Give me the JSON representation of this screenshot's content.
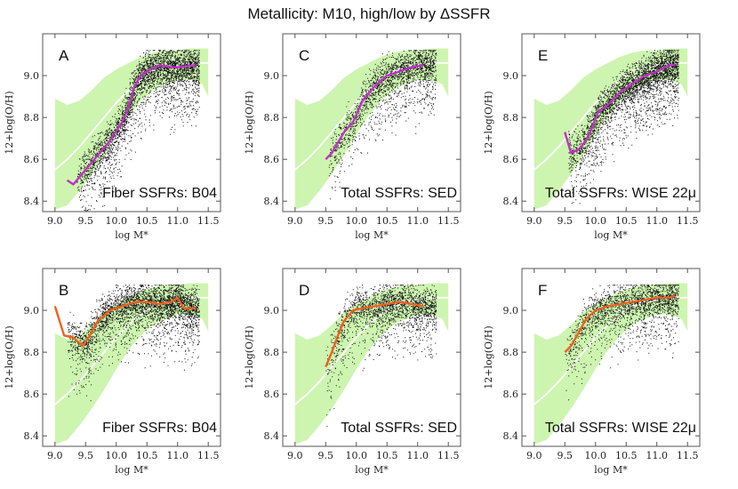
{
  "title": "Metallicity: M10,   high/low by ΔSSFR",
  "colors": {
    "band": "#cdf5b0",
    "median": "#ffffff",
    "magenta": "#c030c8",
    "orange": "#f06020",
    "points": "#111111",
    "frame": "#555555"
  },
  "chart_data": [
    {
      "type": "scatter",
      "id": "A",
      "letter": "A",
      "caption": "Fiber SSFRs: B04",
      "xlabel": "log M*",
      "ylabel": "12+log(O/H)",
      "xlim": [
        8.8,
        11.7
      ],
      "ylim": [
        8.35,
        9.2
      ],
      "xticks": [
        "9.0",
        "9.5",
        "10.0",
        "10.5",
        "11.0",
        "11.5"
      ],
      "yticks": [
        "8.4",
        "8.6",
        "8.8",
        "9.0"
      ],
      "line_color": "magenta",
      "trend": {
        "x": [
          9.2,
          9.3,
          9.5,
          9.7,
          9.9,
          10.1,
          10.2,
          10.3,
          10.4,
          10.5,
          10.7,
          10.9,
          11.0,
          11.3
        ],
        "y": [
          8.5,
          8.48,
          8.55,
          8.62,
          8.69,
          8.78,
          8.85,
          8.95,
          9.0,
          9.02,
          9.05,
          9.04,
          9.04,
          9.05
        ]
      },
      "cloud": {
        "x0": 9.35,
        "x1": 11.35,
        "density": "dense"
      }
    },
    {
      "type": "scatter",
      "id": "C",
      "letter": "C",
      "caption": "Total SSFRs: SED",
      "xlabel": "log M*",
      "ylabel": "12+log(O/H)",
      "xlim": [
        8.8,
        11.7
      ],
      "ylim": [
        8.35,
        9.2
      ],
      "xticks": [
        "9.0",
        "9.5",
        "10.0",
        "10.5",
        "11.0",
        "11.5"
      ],
      "yticks": [
        "8.4",
        "8.6",
        "8.8",
        "9.0"
      ],
      "line_color": "magenta",
      "trend": {
        "x": [
          9.5,
          9.6,
          9.8,
          9.95,
          10.1,
          10.3,
          10.5,
          10.7,
          10.9,
          11.1
        ],
        "y": [
          8.6,
          8.63,
          8.73,
          8.78,
          8.88,
          8.95,
          9.0,
          9.02,
          9.04,
          9.05
        ]
      },
      "cloud": {
        "x0": 9.55,
        "x1": 11.3,
        "density": "medium"
      }
    },
    {
      "type": "scatter",
      "id": "E",
      "letter": "E",
      "caption": "Total SSFRs: WISE 22μ",
      "xlabel": "log M*",
      "ylabel": "12+log(O/H)",
      "xlim": [
        8.8,
        11.7
      ],
      "ylim": [
        8.35,
        9.2
      ],
      "xticks": [
        "9.0",
        "9.5",
        "10.0",
        "10.5",
        "11.0",
        "11.5"
      ],
      "yticks": [
        "8.4",
        "8.6",
        "8.8",
        "9.0"
      ],
      "line_color": "magenta",
      "trend": {
        "x": [
          9.5,
          9.6,
          9.75,
          9.9,
          10.05,
          10.2,
          10.4,
          10.6,
          10.8,
          11.0,
          11.2,
          11.3
        ],
        "y": [
          8.73,
          8.63,
          8.65,
          8.72,
          8.83,
          8.86,
          8.92,
          8.96,
          9.0,
          9.02,
          9.05,
          9.05
        ]
      },
      "cloud": {
        "x0": 9.55,
        "x1": 11.35,
        "density": "dense"
      }
    },
    {
      "type": "scatter",
      "id": "B",
      "letter": "B",
      "caption": "Fiber SSFRs: B04",
      "xlabel": "log M*",
      "ylabel": "12+log(O/H)",
      "xlim": [
        8.8,
        11.7
      ],
      "ylim": [
        8.35,
        9.2
      ],
      "xticks": [
        "9.0",
        "9.5",
        "10.0",
        "10.5",
        "11.0",
        "11.5"
      ],
      "yticks": [
        "8.4",
        "8.6",
        "8.8",
        "9.0"
      ],
      "line_color": "orange",
      "trend": {
        "x": [
          9.0,
          9.15,
          9.3,
          9.45,
          9.55,
          9.7,
          9.9,
          10.1,
          10.3,
          10.5,
          10.7,
          10.9,
          11.0,
          11.1,
          11.3
        ],
        "y": [
          9.02,
          8.88,
          8.87,
          8.83,
          8.87,
          8.95,
          9.0,
          9.02,
          9.04,
          9.04,
          9.03,
          9.04,
          9.06,
          9.01,
          9.01
        ]
      },
      "cloud": {
        "x0": 9.2,
        "x1": 11.35,
        "density": "dense"
      }
    },
    {
      "type": "scatter",
      "id": "D",
      "letter": "D",
      "caption": "Total SSFRs: SED",
      "xlabel": "log M*",
      "ylabel": "12+log(O/H)",
      "xlim": [
        8.8,
        11.7
      ],
      "ylim": [
        8.35,
        9.2
      ],
      "xticks": [
        "9.0",
        "9.5",
        "10.0",
        "10.5",
        "11.0",
        "11.5"
      ],
      "yticks": [
        "8.4",
        "8.6",
        "8.8",
        "9.0"
      ],
      "line_color": "orange",
      "trend": {
        "x": [
          9.5,
          9.6,
          9.7,
          9.8,
          9.95,
          10.1,
          10.3,
          10.5,
          10.7,
          10.9,
          11.1
        ],
        "y": [
          8.73,
          8.8,
          8.88,
          8.95,
          9.0,
          9.01,
          9.02,
          9.03,
          9.04,
          9.03,
          9.02
        ]
      },
      "cloud": {
        "x0": 9.5,
        "x1": 11.3,
        "density": "medium"
      }
    },
    {
      "type": "scatter",
      "id": "F",
      "letter": "F",
      "caption": "Total SSFRs: WISE 22μ",
      "xlabel": "log M*",
      "ylabel": "12+log(O/H)",
      "xlim": [
        8.8,
        11.7
      ],
      "ylim": [
        8.35,
        9.2
      ],
      "xticks": [
        "9.0",
        "9.5",
        "10.0",
        "10.5",
        "11.0",
        "11.5"
      ],
      "yticks": [
        "8.4",
        "8.6",
        "8.8",
        "9.0"
      ],
      "line_color": "orange",
      "trend": {
        "x": [
          9.5,
          9.6,
          9.7,
          9.85,
          10.0,
          10.2,
          10.4,
          10.6,
          10.8,
          11.0,
          11.2,
          11.3
        ],
        "y": [
          8.8,
          8.83,
          8.88,
          8.96,
          9.0,
          9.02,
          9.03,
          9.04,
          9.05,
          9.06,
          9.06,
          9.07
        ]
      },
      "cloud": {
        "x0": 9.5,
        "x1": 11.35,
        "density": "medium"
      }
    }
  ],
  "reference_band": {
    "x": [
      9.0,
      9.2,
      9.4,
      9.6,
      9.8,
      10.0,
      10.2,
      10.4,
      10.6,
      10.8,
      11.0,
      11.2,
      11.4,
      11.5
    ],
    "upper": [
      8.89,
      8.86,
      8.88,
      8.93,
      8.99,
      9.03,
      9.06,
      9.09,
      9.11,
      9.12,
      9.12,
      9.13,
      9.13,
      9.13
    ],
    "lower": [
      8.36,
      8.38,
      8.45,
      8.53,
      8.62,
      8.72,
      8.81,
      8.88,
      8.93,
      8.96,
      8.98,
      8.98,
      8.96,
      8.9
    ],
    "median": [
      8.55,
      8.6,
      8.66,
      8.73,
      8.8,
      8.87,
      8.93,
      8.98,
      9.02,
      9.04,
      9.05,
      9.06,
      9.06,
      9.06
    ]
  }
}
